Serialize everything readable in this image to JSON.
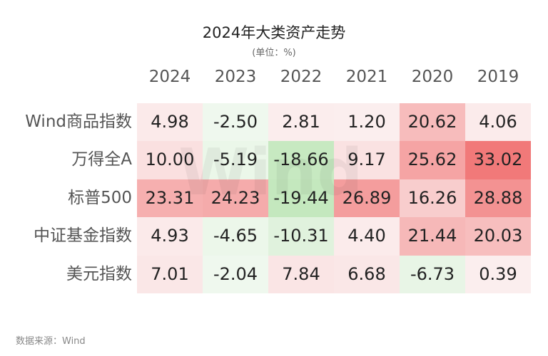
{
  "title": "2024年大类资产走势",
  "subtitle": "(单位：%)",
  "watermark": "Wind",
  "table": {
    "columns": [
      "2024",
      "2023",
      "2022",
      "2021",
      "2020",
      "2019"
    ],
    "rows": [
      {
        "label": "Wind商品指数",
        "values": [
          "4.98",
          "-2.50",
          "2.81",
          "1.20",
          "20.62",
          "4.06"
        ]
      },
      {
        "label": "万得全A",
        "values": [
          "10.00",
          "-5.19",
          "-18.66",
          "9.17",
          "25.62",
          "33.02"
        ]
      },
      {
        "label": "标普500",
        "values": [
          "23.31",
          "24.23",
          "-19.44",
          "26.89",
          "16.26",
          "28.88"
        ]
      },
      {
        "label": "中证基金指数",
        "values": [
          "4.93",
          "-4.65",
          "-10.31",
          "4.40",
          "21.44",
          "20.03"
        ]
      },
      {
        "label": "美元指数",
        "values": [
          "7.01",
          "-2.04",
          "7.84",
          "6.68",
          "-6.73",
          "0.39"
        ]
      }
    ]
  },
  "source": "数据来源：Wind"
}
